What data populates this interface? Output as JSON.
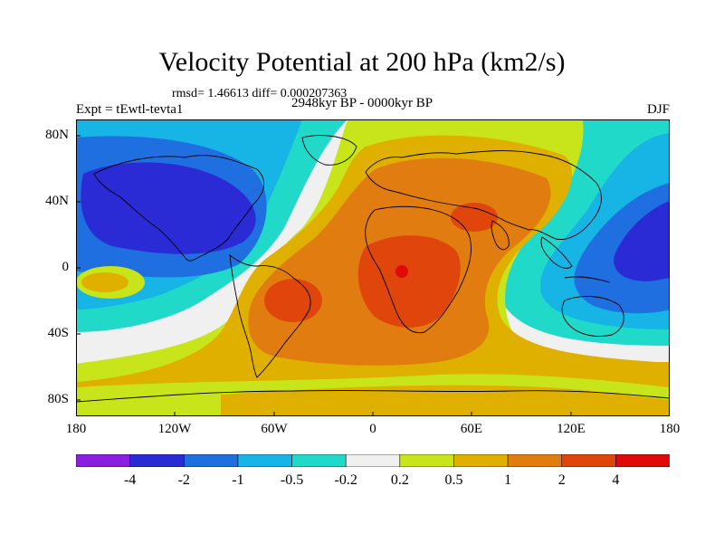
{
  "title": "Velocity Potential at 200 hPa (km2/s)",
  "stats": "rmsd= 1.46613 diff= 0.000207363",
  "experiment": "Expt = tEwtl-tevta1",
  "period": "2948kyr BP - 0000kyr BP",
  "season": "DJF",
  "y_ticks": [
    "80N",
    "40N",
    "0",
    "40S",
    "80S"
  ],
  "x_ticks": [
    "180",
    "120W",
    "60W",
    "0",
    "60E",
    "120E",
    "180"
  ],
  "colorbar": {
    "labels": [
      "-4",
      "-2",
      "-1",
      "-0.5",
      "-0.2",
      "0.2",
      "0.5",
      "1",
      "2",
      "4"
    ],
    "colors": [
      "#8a1fe0",
      "#2b2bd6",
      "#1f6fe0",
      "#17b4e6",
      "#20d9c8",
      "#f0f0f0",
      "#c8e41a",
      "#e0b000",
      "#e07c10",
      "#e0460c",
      "#e00a0a"
    ]
  },
  "palette": {
    "very_neg": "#2b2bd6",
    "neg_strong": "#1f6fe0",
    "neg_mid": "#17b4e6",
    "neg_weak": "#20d9c8",
    "neutral": "#f0f0f0",
    "pos_weak": "#c8e41a",
    "pos_mid": "#e0b000",
    "pos_strong": "#e07c10",
    "pos_very": "#e0460c",
    "pos_max": "#e00a0a",
    "coast": "#000000"
  }
}
